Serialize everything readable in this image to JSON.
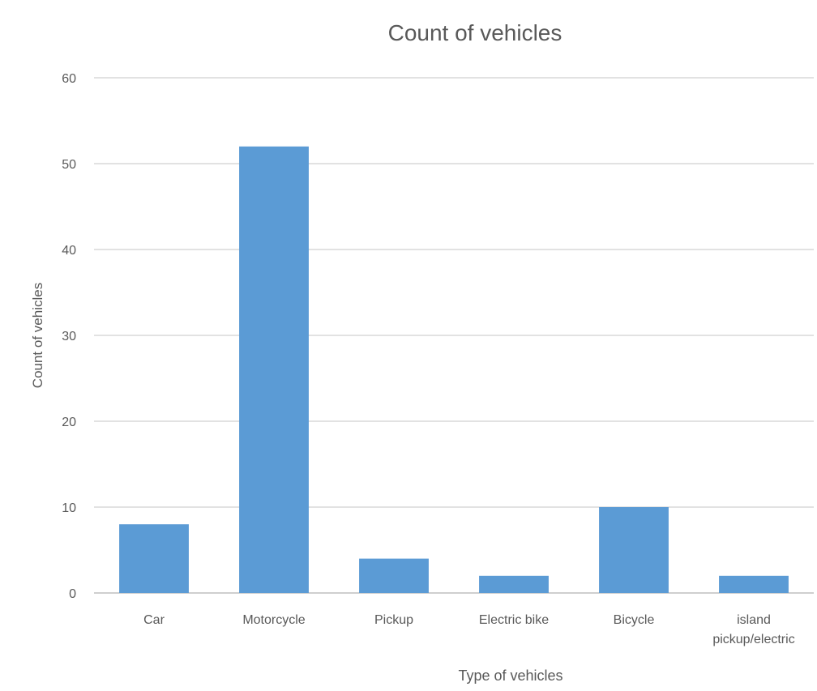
{
  "chart_data": {
    "type": "bar",
    "title": "Count of vehicles",
    "xlabel": "Type of vehicles",
    "ylabel": "Count of vehicles",
    "categories": [
      "Car",
      "Motorcycle",
      "Pickup",
      "Electric bike",
      "Bicycle",
      "island pickup/electric"
    ],
    "category_lines": [
      [
        "Car"
      ],
      [
        "Motorcycle"
      ],
      [
        "Pickup"
      ],
      [
        "Electric bike"
      ],
      [
        "Bicycle"
      ],
      [
        "island",
        "pickup/electric"
      ]
    ],
    "values": [
      8,
      52,
      4,
      2,
      10,
      2
    ],
    "ylim": [
      0,
      60
    ],
    "yticks": [
      0,
      10,
      20,
      30,
      40,
      50,
      60
    ],
    "grid": true,
    "legend": "none",
    "bar_color": "#5b9bd5",
    "grid_color": "#d9d9d9",
    "text_color": "#595959"
  }
}
